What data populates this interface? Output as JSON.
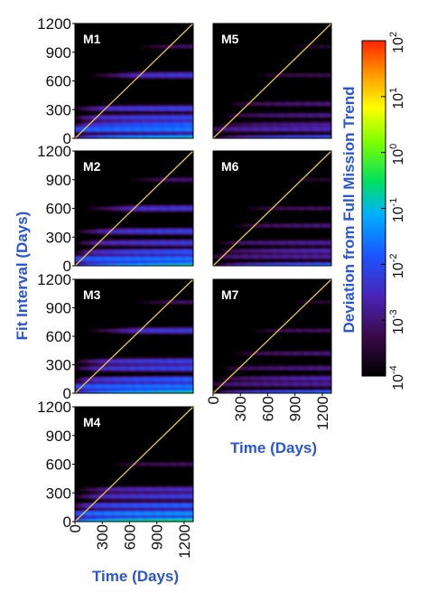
{
  "chart_data": {
    "type": "heatmap",
    "panels": [
      {
        "name": "M1",
        "stripes": [
          [
            0.0,
            0.15,
            1.2
          ],
          [
            0.08,
            0.03,
            0.2
          ],
          [
            0.12,
            0.02,
            0.9
          ],
          [
            0.18,
            0.01,
            0.6
          ],
          [
            0.26,
            0.008,
            0.55
          ],
          [
            0.55,
            0.006,
            0.6
          ],
          [
            0.8,
            0.0008,
            0.4
          ]
        ]
      },
      {
        "name": "M2",
        "stripes": [
          [
            0.0,
            0.2,
            1.3
          ],
          [
            0.06,
            0.03,
            0.25
          ],
          [
            0.12,
            0.015,
            0.95
          ],
          [
            0.2,
            0.007,
            0.7
          ],
          [
            0.3,
            0.008,
            0.6
          ],
          [
            0.5,
            0.006,
            0.55
          ],
          [
            0.75,
            0.001,
            0.45
          ]
        ]
      },
      {
        "name": "M3",
        "stripes": [
          [
            0.0,
            0.25,
            1.2
          ],
          [
            0.06,
            0.03,
            0.25
          ],
          [
            0.12,
            0.02,
            0.9
          ],
          [
            0.22,
            0.01,
            0.6
          ],
          [
            0.28,
            0.008,
            0.55
          ],
          [
            0.55,
            0.007,
            0.6
          ],
          [
            0.8,
            0.0008,
            0.4
          ]
        ]
      },
      {
        "name": "M4",
        "stripes": [
          [
            0.0,
            0.5,
            0.9
          ],
          [
            0.07,
            0.05,
            0.35
          ],
          [
            0.14,
            0.02,
            0.65
          ],
          [
            0.22,
            0.008,
            0.55
          ],
          [
            0.28,
            0.004,
            0.5
          ],
          [
            0.5,
            0.0008,
            0.7
          ]
        ]
      },
      {
        "name": "M5",
        "stripes": [
          [
            0.0,
            0.02,
            1.2
          ],
          [
            0.08,
            0.003,
            0.25
          ],
          [
            0.12,
            0.002,
            0.9
          ],
          [
            0.2,
            0.0015,
            0.7
          ],
          [
            0.3,
            0.0012,
            0.6
          ],
          [
            0.55,
            0.0006,
            0.5
          ],
          [
            0.8,
            0.0003,
            0.4
          ]
        ]
      },
      {
        "name": "M6",
        "stripes": [
          [
            0.0,
            0.03,
            1.3
          ],
          [
            0.08,
            0.002,
            0.3
          ],
          [
            0.13,
            0.003,
            0.9
          ],
          [
            0.2,
            0.002,
            0.6
          ],
          [
            0.35,
            0.0012,
            0.7
          ],
          [
            0.5,
            0.0008,
            0.4
          ],
          [
            0.75,
            0.0003,
            0.5
          ]
        ]
      },
      {
        "name": "M7",
        "stripes": [
          [
            0.0,
            0.03,
            1.2
          ],
          [
            0.08,
            0.002,
            0.3
          ],
          [
            0.13,
            0.003,
            0.9
          ],
          [
            0.22,
            0.0015,
            0.6
          ],
          [
            0.35,
            0.0012,
            0.7
          ],
          [
            0.55,
            0.0008,
            0.5
          ],
          [
            0.8,
            0.0003,
            0.45
          ]
        ]
      }
    ],
    "x": {
      "label": "Time (Days)",
      "ticks": [
        "0",
        "300",
        "600",
        "900",
        "1200"
      ],
      "range": [
        0,
        1300
      ]
    },
    "y": {
      "label": "Fit Interval (Days)",
      "ticks": [
        "0",
        "300",
        "600",
        "900",
        "1200"
      ],
      "range": [
        0,
        1200
      ]
    },
    "colorbar": {
      "label": "Deviation from Full Mission Trend",
      "scale": "log",
      "range": [
        0.0001,
        100
      ],
      "ticks": [
        {
          "base": "10",
          "exp": "2"
        },
        {
          "base": "10",
          "exp": "1"
        },
        {
          "base": "10",
          "exp": "0"
        },
        {
          "base": "10",
          "exp": "-1"
        },
        {
          "base": "10",
          "exp": "-2"
        },
        {
          "base": "10",
          "exp": "-3"
        },
        {
          "base": "10",
          "exp": "-4"
        }
      ]
    },
    "diagonal_color": "#e6c84a"
  }
}
